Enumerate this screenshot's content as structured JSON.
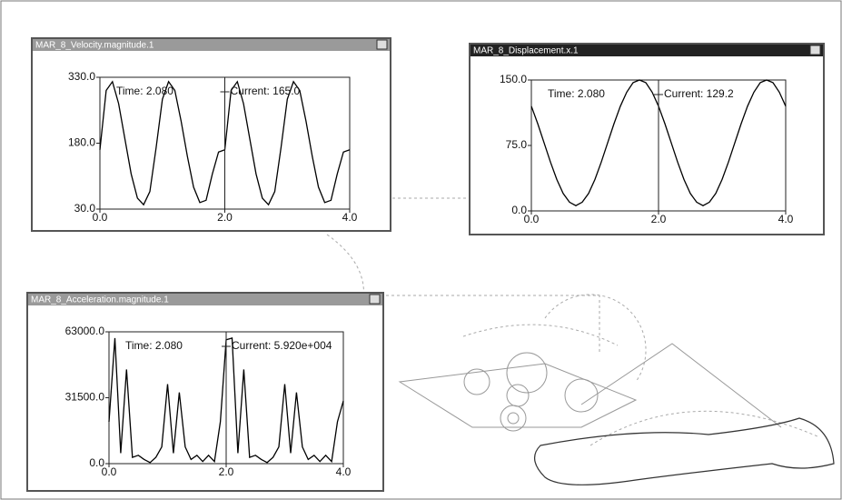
{
  "chart_data": [
    {
      "type": "line",
      "title": "MAR_8_Velocity.magnitude.1",
      "x": [
        0,
        0.1,
        0.2,
        0.3,
        0.4,
        0.5,
        0.6,
        0.7,
        0.8,
        0.9,
        1,
        1.1,
        1.2,
        1.3,
        1.4,
        1.5,
        1.6,
        1.7,
        1.8,
        1.9,
        2,
        2.1,
        2.2,
        2.3,
        2.4,
        2.5,
        2.6,
        2.7,
        2.8,
        2.9,
        3,
        3.1,
        3.2,
        3.3,
        3.4,
        3.5,
        3.6,
        3.7,
        3.8,
        3.9,
        4
      ],
      "values": [
        165,
        300,
        320,
        270,
        190,
        110,
        55,
        40,
        70,
        170,
        280,
        320,
        300,
        230,
        150,
        80,
        45,
        50,
        110,
        160,
        165,
        300,
        320,
        270,
        190,
        110,
        55,
        40,
        70,
        170,
        280,
        320,
        300,
        230,
        150,
        80,
        45,
        50,
        110,
        160,
        165
      ],
      "color": "#000000",
      "xlim": [
        0,
        4
      ],
      "xticks": [
        {
          "value": 0,
          "label": "0.0"
        },
        {
          "value": 2,
          "label": "2.0"
        },
        {
          "value": 4,
          "label": "4.0"
        }
      ],
      "ylim": [
        30,
        330
      ],
      "yticks": [
        {
          "value": 30,
          "label": "30.0"
        },
        {
          "value": 180,
          "label": "180.0"
        },
        {
          "value": 330,
          "label": "330.0"
        }
      ],
      "annotations": [
        "Time: 2.080",
        "Current: 165.0"
      ]
    },
    {
      "type": "line",
      "title": "MAR_8_Displacement.x.1",
      "x": [
        0,
        0.1,
        0.2,
        0.3,
        0.4,
        0.5,
        0.6,
        0.7,
        0.8,
        0.9,
        1,
        1.1,
        1.2,
        1.3,
        1.4,
        1.5,
        1.6,
        1.7,
        1.8,
        1.9,
        2,
        2.1,
        2.2,
        2.3,
        2.4,
        2.5,
        2.6,
        2.7,
        2.8,
        2.9,
        3,
        3.1,
        3.2,
        3.3,
        3.4,
        3.5,
        3.6,
        3.7,
        3.8,
        3.9,
        4
      ],
      "values": [
        120,
        100,
        78,
        56,
        36,
        20,
        10,
        6,
        10,
        20,
        36,
        56,
        78,
        100,
        120,
        136,
        147,
        150,
        147,
        136,
        120,
        100,
        78,
        56,
        36,
        20,
        10,
        6,
        10,
        20,
        36,
        56,
        78,
        100,
        120,
        136,
        147,
        150,
        147,
        136,
        120
      ],
      "color": "#000000",
      "xlim": [
        0,
        4
      ],
      "xticks": [
        {
          "value": 0,
          "label": "0.0"
        },
        {
          "value": 2,
          "label": "2.0"
        },
        {
          "value": 4,
          "label": "4.0"
        }
      ],
      "ylim": [
        0,
        150
      ],
      "yticks": [
        {
          "value": 0,
          "label": "0.0"
        },
        {
          "value": 75,
          "label": "75.0"
        },
        {
          "value": 150,
          "label": "150.0"
        }
      ],
      "annotations": [
        "Time: 2.080",
        "Current: 129.2"
      ]
    },
    {
      "type": "line",
      "title": "MAR_8_Acceleration.magnitude.1",
      "x": [
        0,
        0.1,
        0.2,
        0.3,
        0.4,
        0.5,
        0.6,
        0.7,
        0.8,
        0.9,
        1,
        1.1,
        1.2,
        1.3,
        1.4,
        1.5,
        1.6,
        1.7,
        1.8,
        1.9,
        2,
        2.1,
        2.2,
        2.3,
        2.4,
        2.5,
        2.6,
        2.7,
        2.8,
        2.9,
        3,
        3.1,
        3.2,
        3.3,
        3.4,
        3.5,
        3.6,
        3.7,
        3.8,
        3.9,
        4
      ],
      "values": [
        20000,
        60000,
        5000,
        45000,
        3000,
        4000,
        2000,
        500,
        3000,
        8000,
        38000,
        5000,
        34000,
        8000,
        2000,
        4000,
        1000,
        4000,
        1000,
        20000,
        59200,
        60000,
        5000,
        45000,
        3000,
        4000,
        2000,
        500,
        3000,
        8000,
        38000,
        5000,
        34000,
        8000,
        2000,
        4000,
        1000,
        4000,
        1000,
        20000,
        30000
      ],
      "color": "#000000",
      "xlim": [
        0,
        4
      ],
      "xticks": [
        {
          "value": 0,
          "label": "0.0"
        },
        {
          "value": 2,
          "label": "2.0"
        },
        {
          "value": 4,
          "label": "4.0"
        }
      ],
      "ylim": [
        0,
        63000
      ],
      "yticks": [
        {
          "value": 0,
          "label": "0.0"
        },
        {
          "value": 31500,
          "label": "31500.0"
        },
        {
          "value": 63000,
          "label": "63000.0"
        }
      ],
      "annotations": [
        "Time: 2.080",
        "Current: 5.920e+004"
      ]
    }
  ]
}
